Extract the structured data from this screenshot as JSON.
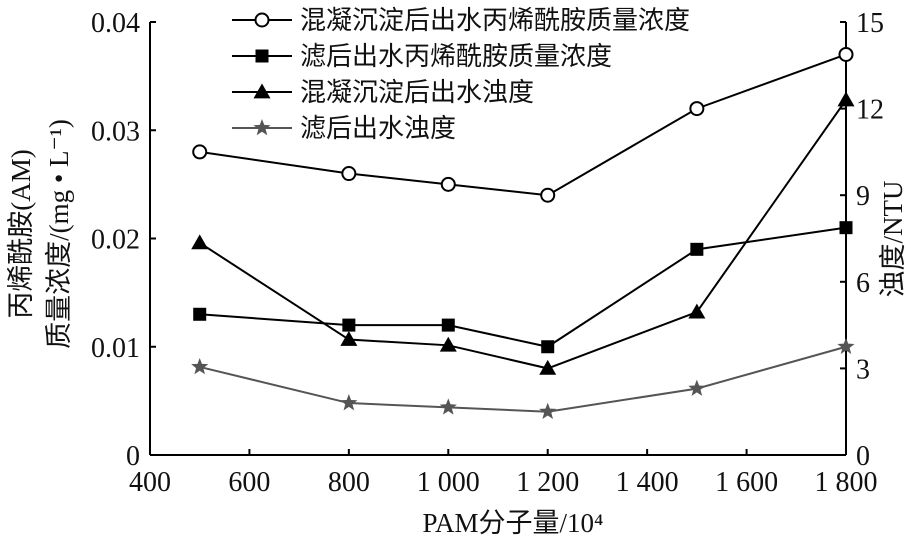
{
  "chart_data": {
    "type": "line",
    "x": [
      500,
      800,
      1000,
      1200,
      1500,
      1800
    ],
    "x_tick_labels": [
      "400",
      "600",
      "800",
      "1 000",
      "1 200",
      "1 400",
      "1 600",
      "1 800"
    ],
    "x_ticks": [
      400,
      600,
      800,
      1000,
      1200,
      1400,
      1600,
      1800
    ],
    "xlim": [
      400,
      1800
    ],
    "xlabel": "PAM分子量/10⁴",
    "ylabel_left_line1": "丙烯酰胺(AM)",
    "ylabel_left_line2": "质量浓度/(mg • L⁻¹)",
    "ylim_left": [
      0,
      0.04
    ],
    "y_ticks_left": [
      "0",
      "0.01",
      "0.02",
      "0.03",
      "0.04"
    ],
    "ylabel_right": "浊度/NTU",
    "ylim_right": [
      0,
      15
    ],
    "y_ticks_right": [
      "0",
      "3",
      "6",
      "9",
      "12",
      "15"
    ],
    "legend_position": "top-center",
    "series": [
      {
        "name": "混凝沉淀后出水丙烯酰胺质量浓度",
        "axis": "left",
        "marker": "open-circle",
        "color": "#000000",
        "values": [
          0.028,
          0.026,
          0.025,
          0.024,
          0.032,
          0.037
        ]
      },
      {
        "name": "滤后出水丙烯酰胺质量浓度",
        "axis": "left",
        "marker": "filled-square",
        "color": "#000000",
        "values": [
          0.013,
          0.012,
          0.012,
          0.01,
          0.019,
          0.021
        ]
      },
      {
        "name": "混凝沉淀后出水浊度",
        "axis": "right",
        "marker": "filled-triangle",
        "color": "#000000",
        "values": [
          7.35,
          4.0,
          3.8,
          3.0,
          4.95,
          12.3
        ]
      },
      {
        "name": "滤后出水浊度",
        "axis": "right",
        "marker": "filled-star",
        "color": "#555555",
        "values": [
          3.05,
          1.8,
          1.65,
          1.5,
          2.3,
          3.75
        ]
      }
    ]
  }
}
